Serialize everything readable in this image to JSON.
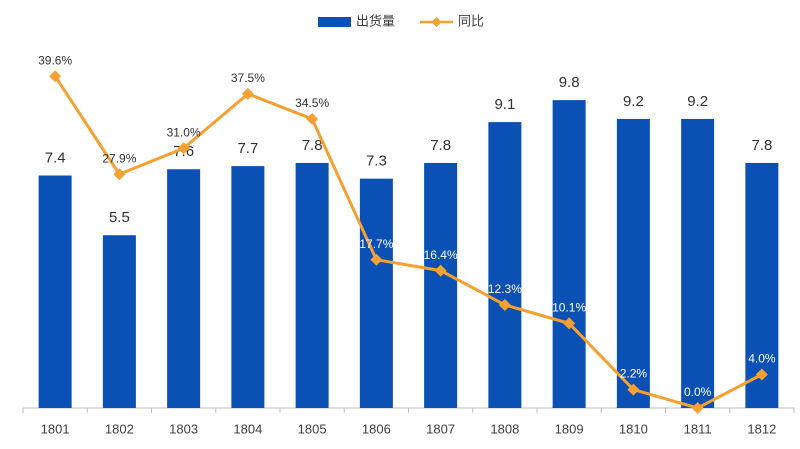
{
  "chart_data": {
    "type": "bar-line",
    "categories": [
      "1801",
      "1802",
      "1803",
      "1804",
      "1805",
      "1806",
      "1807",
      "1808",
      "1809",
      "1810",
      "1811",
      "1812"
    ],
    "series": [
      {
        "name": "出货量",
        "type": "bar",
        "color": "#0b51b5",
        "values": [
          7.4,
          5.5,
          7.6,
          7.7,
          7.8,
          7.3,
          7.8,
          9.1,
          9.8,
          9.2,
          9.2,
          7.8
        ]
      },
      {
        "name": "同比",
        "type": "line",
        "axis": "y2",
        "color": "#f5a031",
        "values": [
          39.6,
          27.9,
          31.0,
          37.5,
          34.5,
          17.7,
          16.4,
          12.3,
          10.1,
          2.2,
          0.0,
          4.0
        ],
        "value_labels": [
          "39.6%",
          "27.9%",
          "31.0%",
          "37.5%",
          "34.5%",
          "17.7%",
          "16.4%",
          "12.3%",
          "10.1%",
          "2.2%",
          "0.0%",
          "4.0%"
        ]
      }
    ],
    "ylim": [
      0,
      12
    ],
    "y2lim": [
      0,
      45
    ],
    "legend": "top"
  }
}
